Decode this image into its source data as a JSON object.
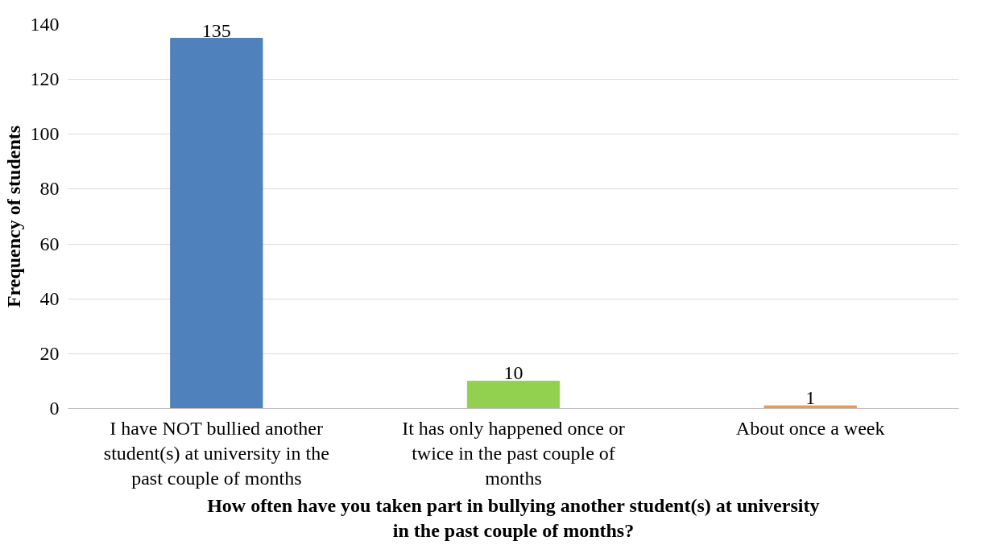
{
  "chart_data": {
    "type": "bar",
    "xlabel": "How often have you taken part in bullying another student(s) at university in the past couple of months?",
    "ylabel": "Frequency of students",
    "categories": [
      "I have NOT bullied another student(s) at university in the past couple of months",
      "It has only happened once or twice in the past couple of months",
      "About once a week"
    ],
    "values": [
      135,
      10,
      1
    ],
    "colors": [
      "#4f81bd",
      "#92d050",
      "#f79646"
    ],
    "ylim": [
      0,
      140
    ],
    "yticks": [
      0,
      20,
      40,
      60,
      80,
      100,
      120,
      140
    ],
    "grid": "y",
    "data_labels": true
  }
}
